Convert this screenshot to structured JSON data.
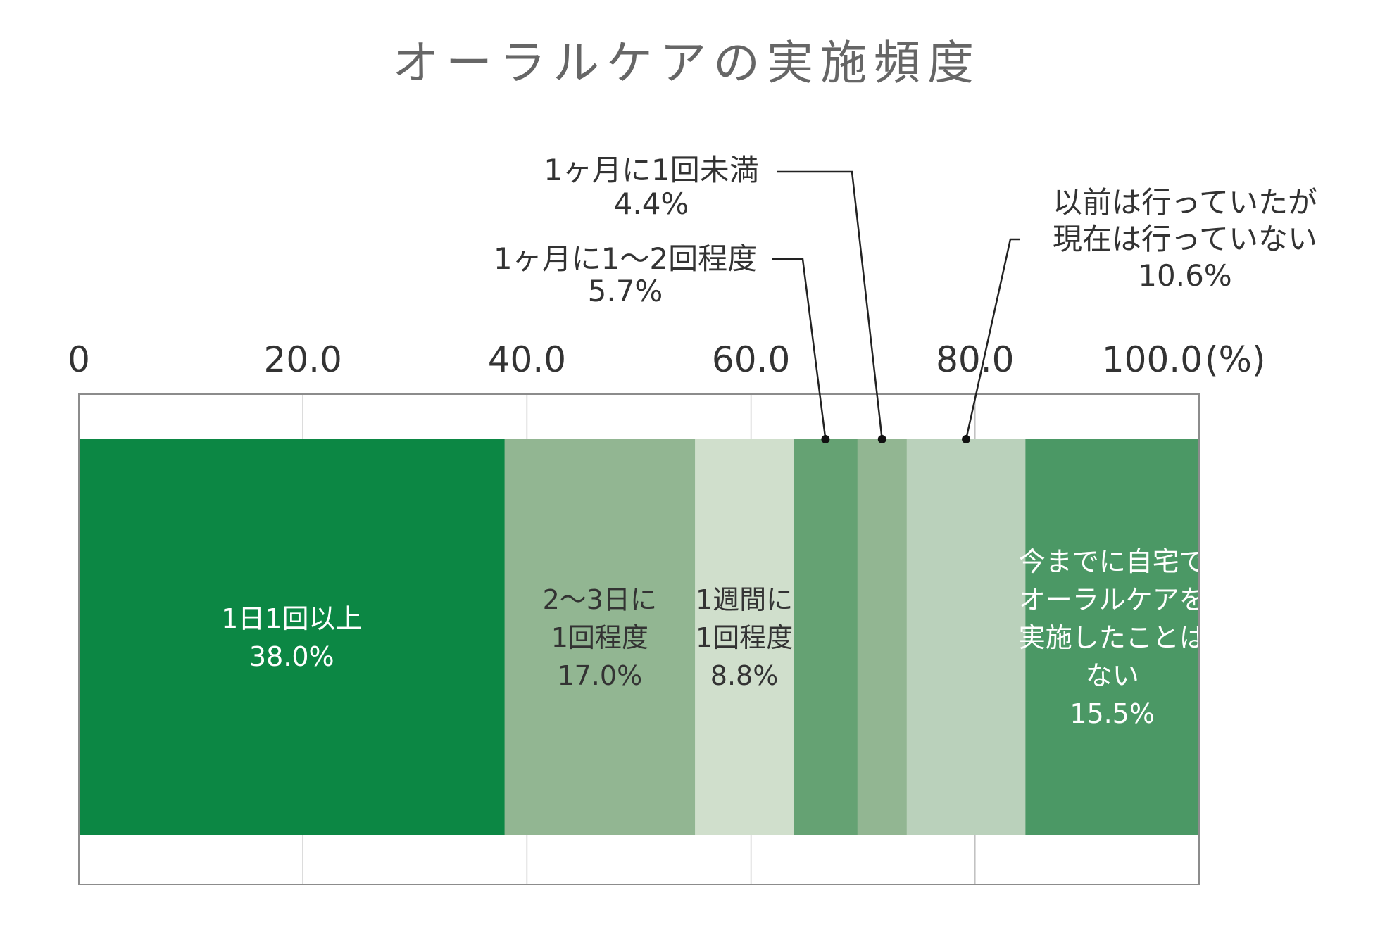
{
  "chart_data": {
    "type": "bar",
    "orientation": "horizontal-stacked",
    "title": "オーラルケアの実施頻度",
    "xlim": [
      0,
      100
    ],
    "tick_values": [
      0,
      20,
      40,
      60,
      80,
      100
    ],
    "tick_labels": [
      "0",
      "20.0",
      "40.0",
      "60.0",
      "80.0",
      "100.0"
    ],
    "unit_label": "(%)",
    "grid": true,
    "segments": [
      {
        "label": "1日1回以上",
        "value": 38.0,
        "value_label": "38.0%",
        "color": "#0c8744",
        "label_lines": [
          "1日1回以上",
          "38.0%"
        ],
        "label_color": "#ffffff"
      },
      {
        "label": "2〜3日に1回程度",
        "value": 17.0,
        "value_label": "17.0%",
        "color": "#92b692",
        "label_lines": [
          "2〜3日に",
          "1回程度",
          "17.0%"
        ],
        "label_color": "#333333"
      },
      {
        "label": "1週間に1回程度",
        "value": 8.8,
        "value_label": "8.8%",
        "color": "#d0dfcc",
        "label_lines": [
          "1週間に",
          "1回程度",
          "8.8%"
        ],
        "label_color": "#333333"
      },
      {
        "label": "1ヶ月に1〜2回程度",
        "value": 5.7,
        "value_label": "5.7%",
        "color": "#65a273",
        "callout_lines": [
          "1ヶ月に1〜2回程度",
          "5.7%"
        ]
      },
      {
        "label": "1ヶ月に1回未満",
        "value": 4.4,
        "value_label": "4.4%",
        "color": "#92b692",
        "callout_lines": [
          "1ヶ月に1回未満",
          "4.4%"
        ]
      },
      {
        "label": "以前は行っていたが現在は行っていない",
        "value": 10.6,
        "value_label": "10.6%",
        "color": "#bad1bb",
        "callout_lines": [
          "以前は行っていたが",
          "現在は行っていない",
          "10.6%"
        ]
      },
      {
        "label": "今までに自宅でオーラルケアを実施したことはない",
        "value": 15.5,
        "value_label": "15.5%",
        "color": "#4b9865",
        "label_lines": [
          "今までに自宅で",
          "オーラルケアを",
          "実施したことは",
          "ない",
          "15.5%"
        ],
        "label_color": "#ffffff"
      }
    ]
  }
}
